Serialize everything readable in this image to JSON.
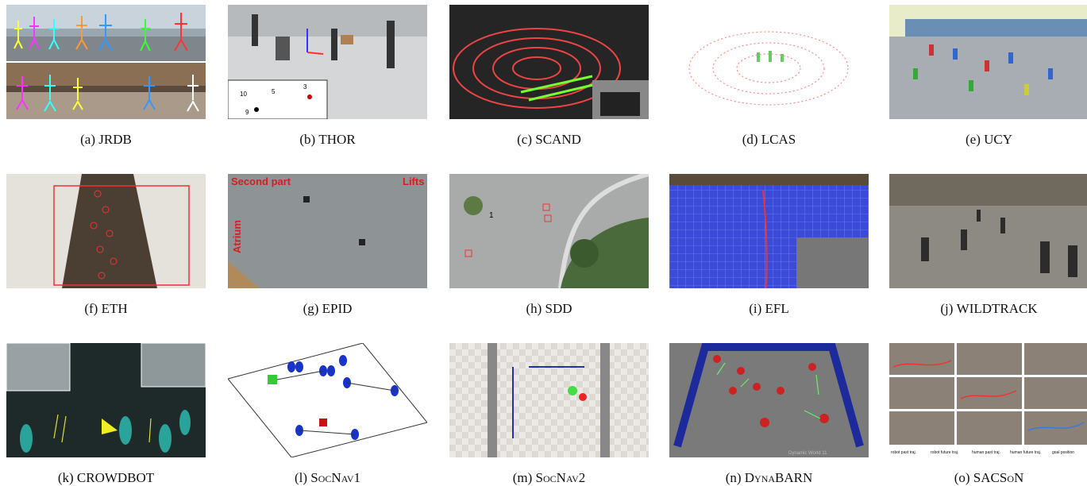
{
  "figure": {
    "panels": [
      {
        "tag": "(a)",
        "name": "JRDB"
      },
      {
        "tag": "(b)",
        "name": "THOR"
      },
      {
        "tag": "(c)",
        "name": "SCAND"
      },
      {
        "tag": "(d)",
        "name": "LCAS"
      },
      {
        "tag": "(e)",
        "name": "UCY"
      },
      {
        "tag": "(f)",
        "name": "ETH"
      },
      {
        "tag": "(g)",
        "name": "EPID"
      },
      {
        "tag": "(h)",
        "name": "SDD"
      },
      {
        "tag": "(i)",
        "name": "EFL"
      },
      {
        "tag": "(j)",
        "name": "WILDTRACK"
      },
      {
        "tag": "(k)",
        "name": "CROWDBOT"
      },
      {
        "tag": "(l)",
        "name": "SocNav1"
      },
      {
        "tag": "(m)",
        "name": "SocNav2"
      },
      {
        "tag": "(n)",
        "name": "DynaBARN"
      },
      {
        "tag": "(o)",
        "name": "SACSoN"
      }
    ]
  },
  "thor": {
    "labels": [
      "10",
      "5",
      "3",
      "9"
    ]
  },
  "epid": {
    "top_left": "Second part",
    "top_right": "Lifts",
    "side": "Atrium"
  },
  "sdd": {
    "label": "1"
  },
  "dynabarn": {
    "footer": "Dynamic World 11"
  },
  "sacson": {
    "legend": [
      "robot past traj.",
      "robot future traj.",
      "human past traj.",
      "human future traj.",
      "goal position"
    ]
  }
}
